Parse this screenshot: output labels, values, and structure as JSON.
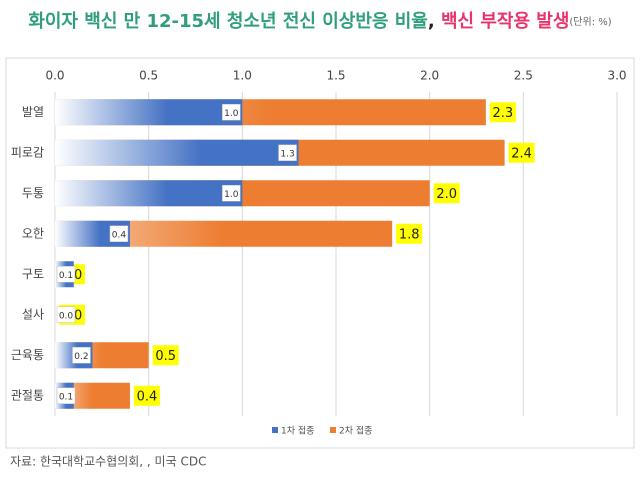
{
  "chart_data": {
    "type": "bar",
    "orientation": "horizontal",
    "overlap": true,
    "title_parts": [
      {
        "text": "화이자 백신 만 12-15세 청소년 전신 이상반응 비율",
        "color": "#2e9e7e"
      },
      {
        "text": ",",
        "color": "#222222"
      },
      {
        "text": " 백신 부작용 발생",
        "color": "#e8336b"
      },
      {
        "text": "(단위: %)",
        "color": "#666666"
      }
    ],
    "source": "자료: 한국대학교수협의회, , 미국 CDC",
    "categories": [
      "발열",
      "피로감",
      "두통",
      "오한",
      "구토",
      "설사",
      "근육통",
      "관절통"
    ],
    "series": [
      {
        "name": "2차 접종",
        "color": "#ed7d31",
        "values": [
          2.3,
          2.4,
          2.0,
          1.8,
          0.0,
          0.0,
          0.5,
          0.4
        ],
        "value_labels": [
          "2.3",
          "2.4",
          "2.0",
          "1.8",
          "0.0",
          "0.0",
          "0.5",
          "0.4"
        ],
        "label_style": "yellow"
      },
      {
        "name": "1차 접종",
        "color": "#4472c4",
        "values": [
          1.0,
          1.3,
          1.0,
          0.4,
          0.1,
          0.0,
          0.2,
          0.1
        ],
        "value_labels": [
          "1.0",
          "1.3",
          "1.0",
          "0.4",
          "0.1",
          "0.0",
          "0.2",
          "0.1"
        ],
        "label_style": "boxed"
      }
    ],
    "legend_order": [
      1,
      0
    ],
    "xlim": [
      0,
      3
    ],
    "xticks": [
      {
        "value": 0,
        "label": "0.0"
      },
      {
        "value": 0.5,
        "label": "0.5"
      },
      {
        "value": 1,
        "label": "1.0"
      },
      {
        "value": 1.5,
        "label": "1.5"
      },
      {
        "value": 2,
        "label": "2.0"
      },
      {
        "value": 2.5,
        "label": "2.5"
      },
      {
        "value": 3,
        "label": "3.0"
      }
    ],
    "grid": true
  }
}
